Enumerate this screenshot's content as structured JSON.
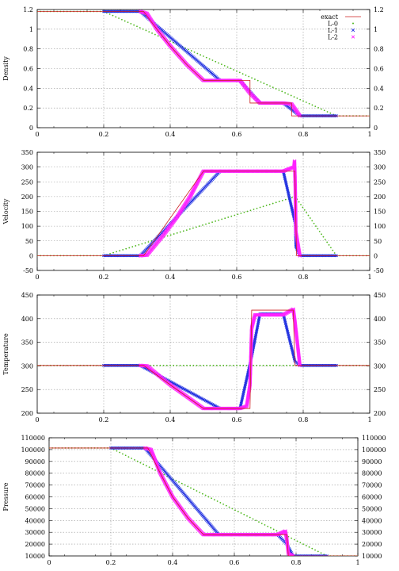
{
  "legend": {
    "entries": [
      {
        "label": "exact",
        "color": "#cc1f1f",
        "marker": "line"
      },
      {
        "label": "L-0",
        "color": "#4fb81f",
        "marker": "dot"
      },
      {
        "label": "L-1",
        "color": "#1f2fe0",
        "marker": "x"
      },
      {
        "label": "L-2",
        "color": "#ff22ff",
        "marker": "x"
      }
    ],
    "placement": "top-right"
  },
  "chart_data": [
    {
      "type": "line",
      "ylabel": "Density",
      "xlim": [
        0,
        1
      ],
      "ylim": [
        0,
        1.2
      ],
      "xticks": [
        "0",
        "0.2",
        "0.4",
        "0.6",
        "0.8",
        "1"
      ],
      "yticks": [
        "0",
        "0.2",
        "0.4",
        "0.6",
        "0.8",
        "1",
        "1.2"
      ],
      "grid": true,
      "series": [
        {
          "name": "exact",
          "x": [
            0,
            0.32,
            0.36,
            0.4,
            0.45,
            0.5,
            0.64,
            0.64,
            0.765,
            0.765,
            1
          ],
          "y": [
            1.18,
            1.18,
            1.0,
            0.83,
            0.64,
            0.48,
            0.48,
            0.25,
            0.25,
            0.12,
            0.12
          ]
        },
        {
          "name": "L-0",
          "x": [
            0,
            0.2,
            0.9,
            1.0
          ],
          "y": [
            1.18,
            1.18,
            0.12,
            0.12
          ]
        },
        {
          "name": "L-1",
          "x": [
            0.2,
            0.31,
            0.55,
            0.61,
            0.67,
            0.74,
            0.79,
            0.9
          ],
          "y": [
            1.18,
            1.18,
            0.48,
            0.48,
            0.25,
            0.25,
            0.12,
            0.12
          ]
        },
        {
          "name": "L-2",
          "x": [
            0.31,
            0.33,
            0.36,
            0.4,
            0.45,
            0.5,
            0.55,
            0.61,
            0.64,
            0.67,
            0.74,
            0.765,
            0.79
          ],
          "y": [
            1.18,
            1.16,
            1.0,
            0.83,
            0.64,
            0.48,
            0.48,
            0.48,
            0.35,
            0.25,
            0.25,
            0.24,
            0.12
          ]
        }
      ]
    },
    {
      "type": "line",
      "ylabel": "Velocity",
      "xlim": [
        0,
        1
      ],
      "ylim": [
        -50,
        350
      ],
      "xticks": [
        "0",
        "0.2",
        "0.4",
        "0.6",
        "0.8",
        "1"
      ],
      "yticks": [
        "-50",
        "0",
        "50",
        "100",
        "150",
        "200",
        "250",
        "300",
        "350"
      ],
      "grid": true,
      "series": [
        {
          "name": "exact",
          "x": [
            0,
            0.32,
            0.5,
            0.775,
            0.78,
            1
          ],
          "y": [
            0,
            0,
            286,
            286,
            0,
            0
          ]
        },
        {
          "name": "L-0",
          "x": [
            0,
            0.2,
            0.776,
            0.9,
            1.0
          ],
          "y": [
            0,
            0,
            200,
            0,
            0
          ]
        },
        {
          "name": "L-1",
          "x": [
            0.2,
            0.31,
            0.55,
            0.74,
            0.776,
            0.778,
            0.79,
            0.9
          ],
          "y": [
            0,
            0,
            286,
            286,
            110,
            30,
            0,
            0
          ]
        },
        {
          "name": "L-2",
          "x": [
            0.31,
            0.33,
            0.38,
            0.42,
            0.46,
            0.5,
            0.55,
            0.74,
            0.772,
            0.774,
            0.776,
            0.778,
            0.79
          ],
          "y": [
            0,
            2,
            70,
            130,
            200,
            286,
            286,
            286,
            300,
            320,
            240,
            80,
            0
          ]
        }
      ]
    },
    {
      "type": "line",
      "ylabel": "Temperature",
      "xlim": [
        0,
        1
      ],
      "ylim": [
        200,
        450
      ],
      "xticks": [
        "0",
        "0.2",
        "0.4",
        "0.6",
        "0.8",
        "1"
      ],
      "yticks": [
        "200",
        "250",
        "300",
        "350",
        "400",
        "450"
      ],
      "grid": true,
      "series": [
        {
          "name": "exact",
          "x": [
            0,
            0.32,
            0.4,
            0.45,
            0.5,
            0.64,
            0.645,
            0.77,
            0.775,
            1
          ],
          "y": [
            301,
            301,
            260,
            235,
            210,
            210,
            418,
            418,
            301,
            301
          ]
        },
        {
          "name": "L-0",
          "x": [
            0,
            0.2,
            0.9,
            1.0
          ],
          "y": [
            301,
            301,
            301,
            301
          ]
        },
        {
          "name": "L-1",
          "x": [
            0.2,
            0.31,
            0.55,
            0.61,
            0.645,
            0.67,
            0.74,
            0.775,
            0.79,
            0.9
          ],
          "y": [
            301,
            301,
            210,
            210,
            320,
            410,
            410,
            310,
            301,
            301
          ]
        },
        {
          "name": "L-2",
          "x": [
            0.31,
            0.33,
            0.4,
            0.45,
            0.5,
            0.55,
            0.61,
            0.63,
            0.64,
            0.645,
            0.655,
            0.74,
            0.77,
            0.775,
            0.79
          ],
          "y": [
            301,
            300,
            260,
            235,
            210,
            210,
            210,
            215,
            260,
            380,
            408,
            408,
            420,
            395,
            301
          ]
        }
      ]
    },
    {
      "type": "line",
      "ylabel": "Pressure",
      "xlim": [
        0,
        1
      ],
      "ylim": [
        10000,
        110000
      ],
      "xticks": [
        "0",
        "0.2",
        "0.4",
        "0.6",
        "0.8",
        "1"
      ],
      "yticks": [
        "10000",
        "20000",
        "30000",
        "40000",
        "50000",
        "60000",
        "70000",
        "80000",
        "90000",
        "100000",
        "110000"
      ],
      "grid": true,
      "series": [
        {
          "name": "exact",
          "x": [
            0,
            0.32,
            0.36,
            0.4,
            0.45,
            0.5,
            0.77,
            0.775,
            1
          ],
          "y": [
            101325,
            101325,
            80000,
            60000,
            42000,
            28000,
            28000,
            10000,
            10000
          ]
        },
        {
          "name": "L-0",
          "x": [
            0,
            0.2,
            0.9,
            1.0
          ],
          "y": [
            101325,
            101325,
            10000,
            10000
          ]
        },
        {
          "name": "L-1",
          "x": [
            0.2,
            0.31,
            0.55,
            0.74,
            0.77,
            0.79,
            0.9
          ],
          "y": [
            101325,
            101325,
            28000,
            28000,
            20000,
            10000,
            10000
          ]
        },
        {
          "name": "L-2",
          "x": [
            0.31,
            0.33,
            0.36,
            0.4,
            0.45,
            0.5,
            0.55,
            0.74,
            0.765,
            0.77,
            0.775,
            0.79
          ],
          "y": [
            101325,
            100000,
            80000,
            60000,
            42000,
            28000,
            28000,
            28000,
            31000,
            24000,
            12000,
            10000
          ]
        }
      ]
    }
  ]
}
